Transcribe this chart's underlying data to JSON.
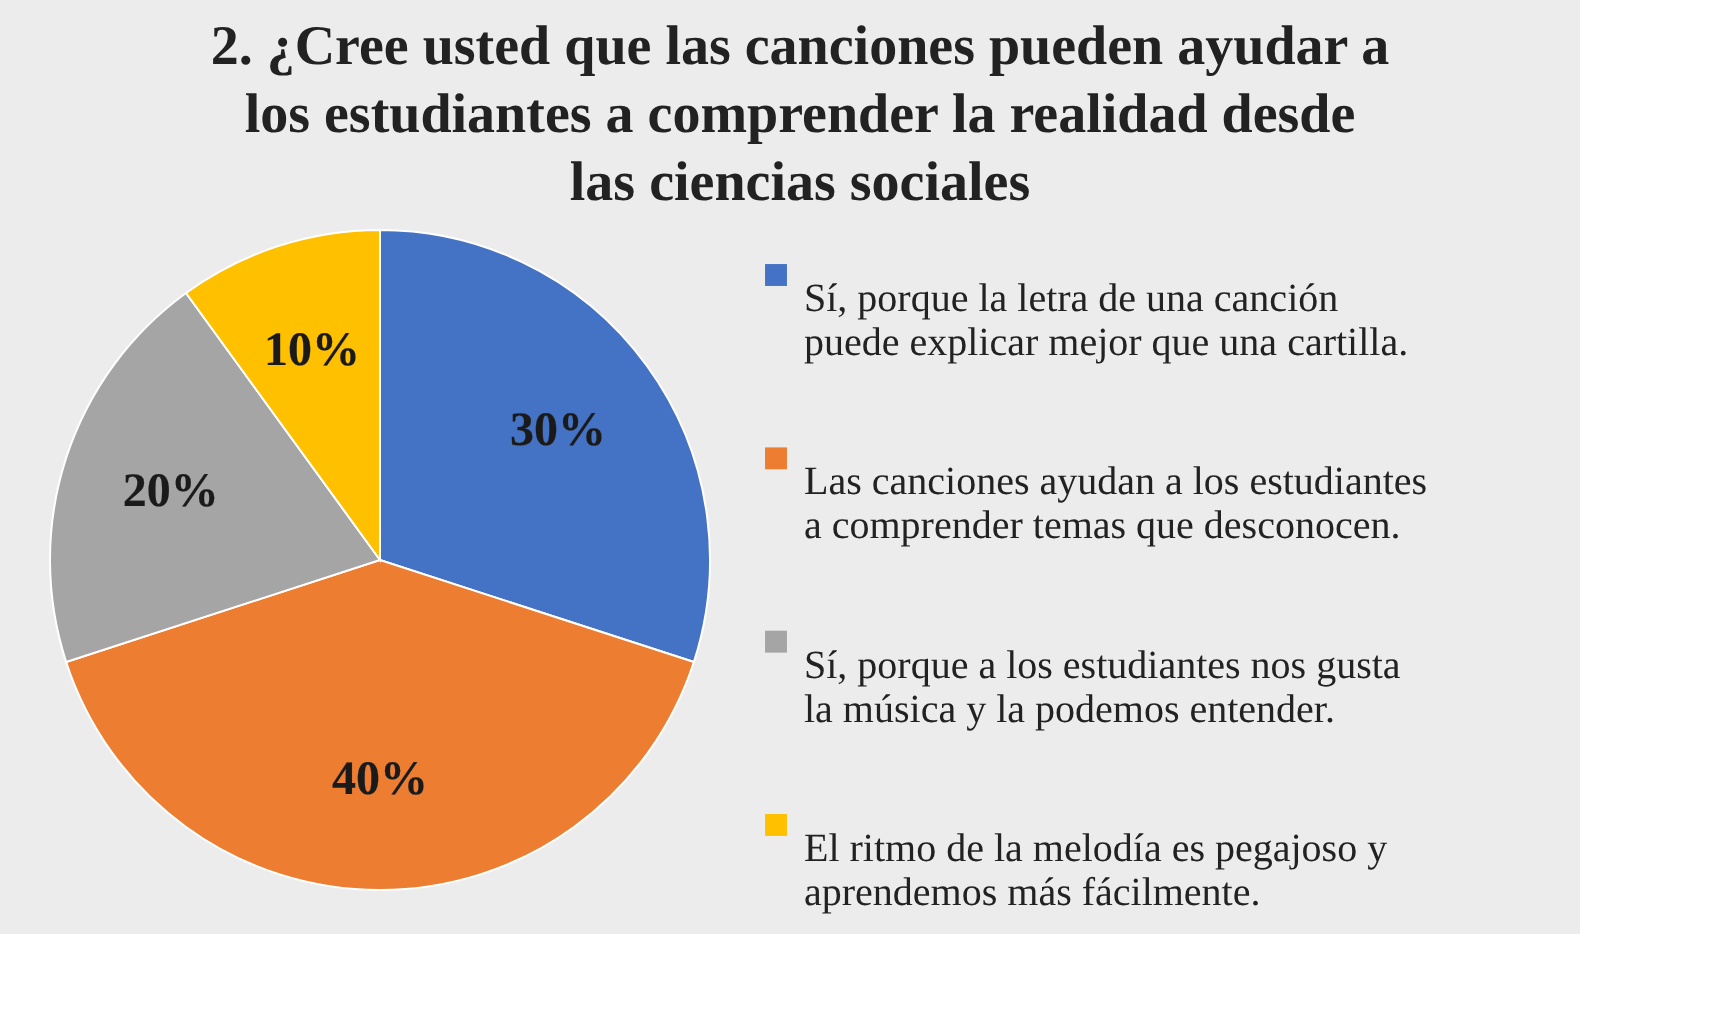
{
  "chart_data": {
    "type": "pie",
    "title": "2. ¿Cree usted que las canciones pueden ayudar a los estudiantes a comprender la realidad desde las ciencias sociales",
    "categories": [
      "Sí, porque la letra de una canción puede explicar mejor que una cartilla.",
      "Las canciones ayudan a los estudiantes a comprender temas que desconocen.",
      "Sí, porque a los estudiantes nos gusta la música y la podemos entender.",
      "El ritmo de la melodía es pegajoso y aprendemos más fácilmente."
    ],
    "values": [
      30,
      40,
      20,
      10
    ],
    "value_labels": [
      "30%",
      "40%",
      "20%",
      "10%"
    ],
    "colors": [
      "#4472c4",
      "#ed7d31",
      "#a5a5a5",
      "#ffc000"
    ],
    "legend": "right"
  }
}
